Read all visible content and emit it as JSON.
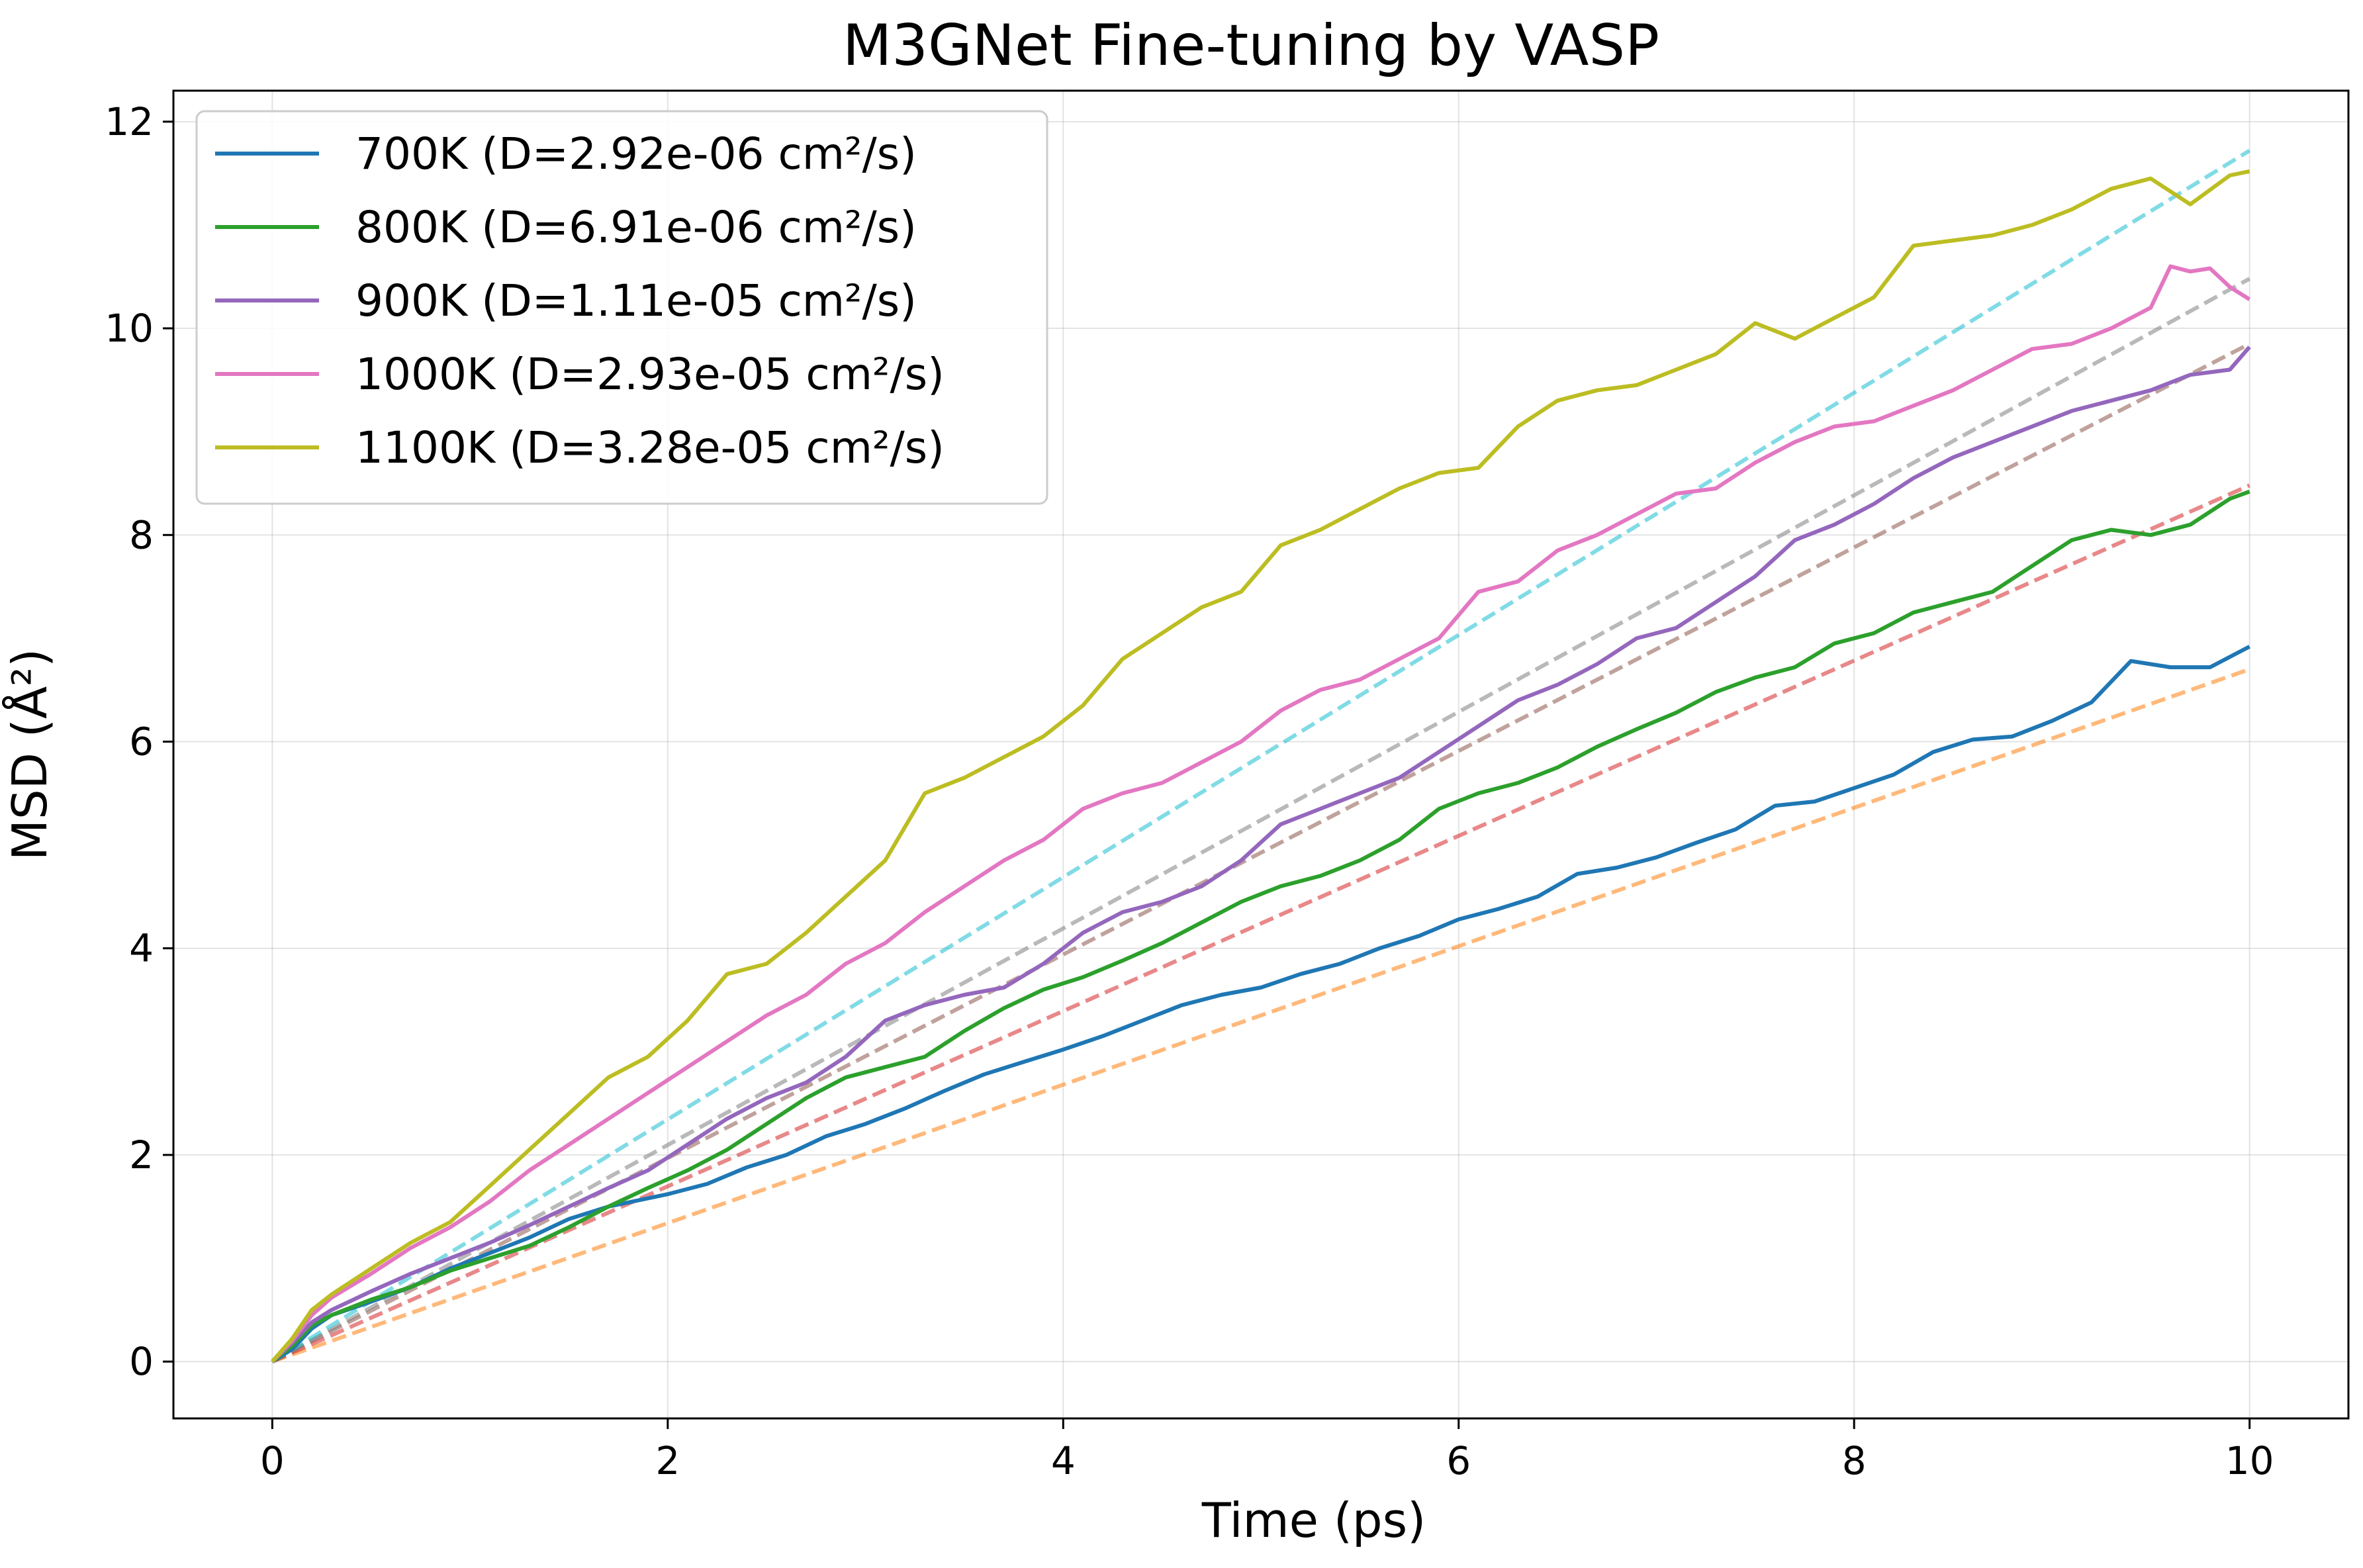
{
  "chart_data": {
    "type": "line",
    "title": "M3GNet Fine-tuning by VASP",
    "xlabel": "Time (ps)",
    "ylabel": "MSD (Å²)",
    "xlim": [
      -0.5,
      10.5
    ],
    "ylim": [
      -0.55,
      12.3
    ],
    "xticks": [
      0,
      2,
      4,
      6,
      8,
      10
    ],
    "yticks": [
      0,
      2,
      4,
      6,
      8,
      10,
      12
    ],
    "grid": true,
    "legend_position": "top-left",
    "series": [
      {
        "name": "700K (D=2.92e-06 cm²/s)",
        "color": "#1f77b4",
        "x": [
          0,
          0.1,
          0.2,
          0.3,
          0.5,
          0.7,
          0.9,
          1.1,
          1.3,
          1.5,
          1.7,
          2.0,
          2.2,
          2.4,
          2.6,
          2.8,
          3.0,
          3.2,
          3.4,
          3.6,
          3.8,
          4.0,
          4.2,
          4.4,
          4.6,
          4.8,
          5.0,
          5.2,
          5.4,
          5.6,
          5.8,
          6.0,
          6.2,
          6.4,
          6.6,
          6.8,
          7.0,
          7.2,
          7.4,
          7.6,
          7.8,
          8.0,
          8.2,
          8.4,
          8.6,
          8.8,
          9.0,
          9.2,
          9.4,
          9.6,
          9.8,
          10.0
        ],
        "y": [
          0,
          0.12,
          0.32,
          0.45,
          0.58,
          0.72,
          0.9,
          1.05,
          1.2,
          1.38,
          1.5,
          1.62,
          1.72,
          1.88,
          2.0,
          2.18,
          2.3,
          2.45,
          2.62,
          2.78,
          2.9,
          3.02,
          3.15,
          3.3,
          3.45,
          3.55,
          3.62,
          3.75,
          3.85,
          4.0,
          4.12,
          4.28,
          4.38,
          4.5,
          4.72,
          4.78,
          4.88,
          5.02,
          5.15,
          5.38,
          5.42,
          5.55,
          5.68,
          5.9,
          6.02,
          6.05,
          6.2,
          6.38,
          6.78,
          6.72,
          6.72,
          6.92
        ]
      },
      {
        "name": "800K (D=6.91e-06 cm²/s)",
        "color": "#2ca02c",
        "x": [
          0,
          0.1,
          0.2,
          0.3,
          0.5,
          0.7,
          0.9,
          1.1,
          1.3,
          1.5,
          1.7,
          1.9,
          2.1,
          2.3,
          2.5,
          2.7,
          2.9,
          3.1,
          3.3,
          3.5,
          3.7,
          3.9,
          4.1,
          4.3,
          4.5,
          4.7,
          4.9,
          5.1,
          5.3,
          5.5,
          5.7,
          5.9,
          6.1,
          6.3,
          6.5,
          6.7,
          6.9,
          7.1,
          7.3,
          7.5,
          7.7,
          7.9,
          8.1,
          8.3,
          8.5,
          8.7,
          8.9,
          9.1,
          9.3,
          9.5,
          9.7,
          9.9,
          10.0
        ],
        "y": [
          0,
          0.15,
          0.35,
          0.45,
          0.6,
          0.72,
          0.88,
          1.0,
          1.12,
          1.3,
          1.5,
          1.68,
          1.85,
          2.05,
          2.3,
          2.55,
          2.75,
          2.85,
          2.95,
          3.2,
          3.42,
          3.6,
          3.72,
          3.88,
          4.05,
          4.25,
          4.45,
          4.6,
          4.7,
          4.85,
          5.05,
          5.35,
          5.5,
          5.6,
          5.75,
          5.95,
          6.12,
          6.28,
          6.48,
          6.62,
          6.72,
          6.95,
          7.05,
          7.25,
          7.35,
          7.45,
          7.7,
          7.95,
          8.05,
          8.0,
          8.1,
          8.35,
          8.42
        ]
      },
      {
        "name": "900K (D=1.11e-05 cm²/s)",
        "color": "#9467bd",
        "x": [
          0,
          0.1,
          0.2,
          0.3,
          0.5,
          0.7,
          0.9,
          1.1,
          1.3,
          1.5,
          1.7,
          1.9,
          2.1,
          2.3,
          2.5,
          2.7,
          2.9,
          3.1,
          3.3,
          3.5,
          3.7,
          3.9,
          4.1,
          4.3,
          4.5,
          4.7,
          4.9,
          5.1,
          5.3,
          5.5,
          5.7,
          5.9,
          6.1,
          6.3,
          6.5,
          6.7,
          6.9,
          7.1,
          7.3,
          7.5,
          7.7,
          7.9,
          8.1,
          8.3,
          8.5,
          8.7,
          8.9,
          9.1,
          9.3,
          9.5,
          9.7,
          9.9,
          10.0
        ],
        "y": [
          0,
          0.18,
          0.38,
          0.5,
          0.68,
          0.85,
          1.0,
          1.15,
          1.32,
          1.5,
          1.68,
          1.85,
          2.1,
          2.35,
          2.55,
          2.7,
          2.95,
          3.3,
          3.45,
          3.55,
          3.62,
          3.85,
          4.15,
          4.35,
          4.45,
          4.6,
          4.85,
          5.2,
          5.35,
          5.5,
          5.65,
          5.9,
          6.15,
          6.4,
          6.55,
          6.75,
          7.0,
          7.1,
          7.35,
          7.6,
          7.95,
          8.1,
          8.3,
          8.55,
          8.75,
          8.9,
          9.05,
          9.2,
          9.3,
          9.4,
          9.55,
          9.6,
          9.82
        ]
      },
      {
        "name": "1000K (D=2.93e-05 cm²/s)",
        "color": "#e377c2",
        "x": [
          0,
          0.1,
          0.2,
          0.3,
          0.5,
          0.7,
          0.9,
          1.1,
          1.3,
          1.5,
          1.7,
          1.9,
          2.1,
          2.3,
          2.5,
          2.7,
          2.9,
          3.1,
          3.3,
          3.5,
          3.7,
          3.9,
          4.1,
          4.3,
          4.5,
          4.7,
          4.9,
          5.1,
          5.3,
          5.5,
          5.7,
          5.9,
          6.1,
          6.3,
          6.5,
          6.7,
          6.9,
          7.1,
          7.3,
          7.5,
          7.7,
          7.9,
          8.1,
          8.3,
          8.5,
          8.7,
          8.9,
          9.1,
          9.3,
          9.5,
          9.6,
          9.7,
          9.8,
          9.9,
          10.0
        ],
        "y": [
          0,
          0.2,
          0.45,
          0.62,
          0.85,
          1.1,
          1.3,
          1.55,
          1.85,
          2.1,
          2.35,
          2.6,
          2.85,
          3.1,
          3.35,
          3.55,
          3.85,
          4.05,
          4.35,
          4.6,
          4.85,
          5.05,
          5.35,
          5.5,
          5.6,
          5.8,
          6.0,
          6.3,
          6.5,
          6.6,
          6.8,
          7.0,
          7.45,
          7.55,
          7.85,
          8.0,
          8.2,
          8.4,
          8.45,
          8.7,
          8.9,
          9.05,
          9.1,
          9.25,
          9.4,
          9.6,
          9.8,
          9.85,
          10.0,
          10.2,
          10.6,
          10.55,
          10.58,
          10.4,
          10.28
        ]
      },
      {
        "name": "1100K (D=3.28e-05 cm²/s)",
        "color": "#bcbd22",
        "x": [
          0,
          0.1,
          0.2,
          0.3,
          0.5,
          0.7,
          0.9,
          1.1,
          1.3,
          1.5,
          1.7,
          1.9,
          2.1,
          2.3,
          2.5,
          2.7,
          2.9,
          3.1,
          3.3,
          3.5,
          3.7,
          3.9,
          4.1,
          4.3,
          4.5,
          4.7,
          4.9,
          5.1,
          5.3,
          5.5,
          5.7,
          5.9,
          6.1,
          6.3,
          6.5,
          6.7,
          6.9,
          7.1,
          7.3,
          7.5,
          7.7,
          7.9,
          8.1,
          8.3,
          8.5,
          8.7,
          8.9,
          9.1,
          9.3,
          9.5,
          9.7,
          9.9,
          10.0
        ],
        "y": [
          0,
          0.22,
          0.5,
          0.65,
          0.9,
          1.15,
          1.35,
          1.7,
          2.05,
          2.4,
          2.75,
          2.95,
          3.3,
          3.75,
          3.85,
          4.15,
          4.5,
          4.85,
          5.5,
          5.65,
          5.85,
          6.05,
          6.35,
          6.8,
          7.05,
          7.3,
          7.45,
          7.9,
          8.05,
          8.25,
          8.45,
          8.6,
          8.65,
          9.05,
          9.3,
          9.4,
          9.45,
          9.6,
          9.75,
          10.05,
          9.9,
          10.1,
          10.3,
          10.8,
          10.85,
          10.9,
          11.0,
          11.15,
          11.35,
          11.45,
          11.2,
          11.48,
          11.52
        ]
      },
      {
        "name": "",
        "color": "#ff7f0e",
        "dashed": true,
        "x": [
          0,
          10
        ],
        "y": [
          0,
          6.7
        ]
      },
      {
        "name": "",
        "color": "#d62728",
        "dashed": true,
        "x": [
          0,
          10
        ],
        "y": [
          0,
          8.48
        ]
      },
      {
        "name": "",
        "color": "#8c564b",
        "dashed": true,
        "x": [
          0,
          10
        ],
        "y": [
          0,
          9.85
        ]
      },
      {
        "name": "",
        "color": "#7f7f7f",
        "dashed": true,
        "x": [
          0,
          10
        ],
        "y": [
          0,
          10.48
        ]
      },
      {
        "name": "",
        "color": "#17becf",
        "dashed": true,
        "x": [
          0,
          10
        ],
        "y": [
          0,
          11.72
        ]
      }
    ]
  }
}
